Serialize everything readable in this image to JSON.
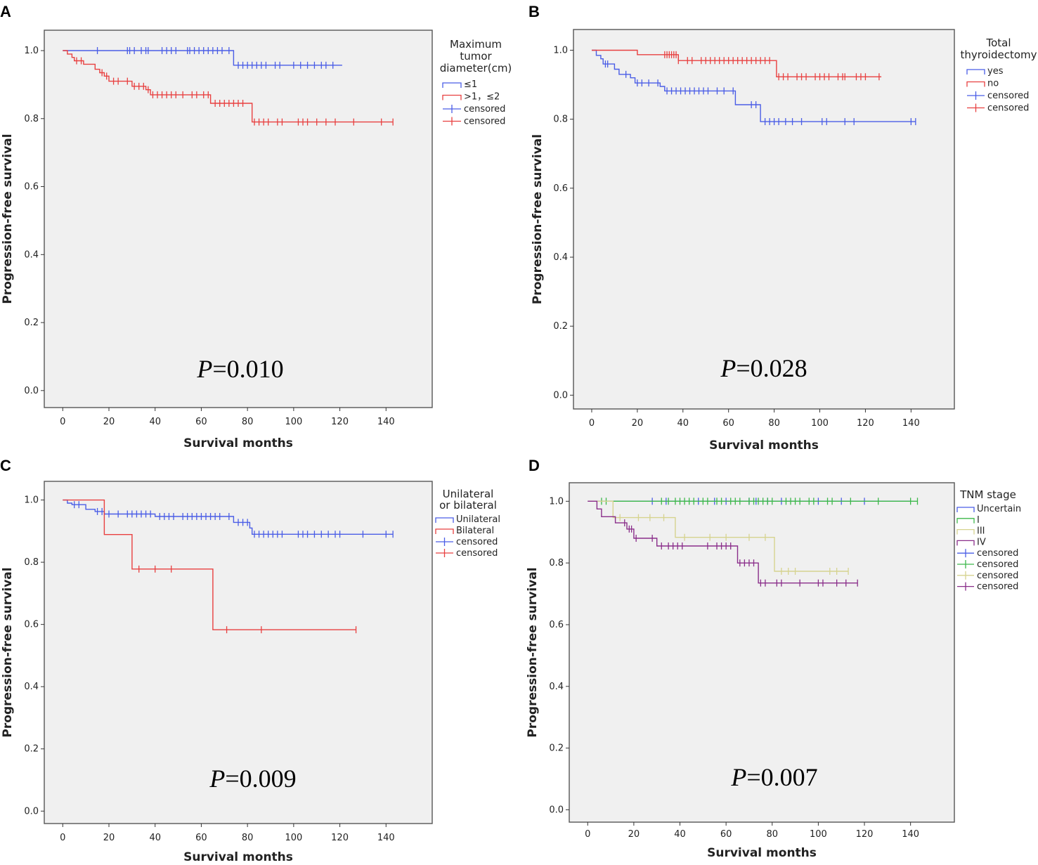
{
  "chart_data": [
    {
      "type": "line",
      "panel": "A",
      "subtype": "kaplan-meier",
      "xlabel": "Survival months",
      "ylabel": "Progression-free survival",
      "xticks": [
        "0",
        "20",
        "40",
        "60",
        "80",
        "100",
        "120",
        "140"
      ],
      "yticks": [
        "0.0",
        "0.2",
        "0.4",
        "0.6",
        "0.8",
        "1.0"
      ],
      "xlim": [
        -8,
        160
      ],
      "ylim": [
        -0.05,
        1.06
      ],
      "legend_title": [
        "Maximum",
        "tumor",
        "diameter(cm)"
      ],
      "p_prefix": "P",
      "p_value": "=0.010",
      "series": [
        {
          "name": "≤1",
          "color": "#4a5de6",
          "steps": [
            [
              0,
              1.0
            ],
            [
              74,
              0.957
            ],
            [
              121,
              0.957
            ]
          ],
          "censored": [
            15,
            28,
            29,
            31,
            34,
            36,
            37,
            43,
            45,
            47,
            49,
            54,
            55,
            57,
            59,
            61,
            63,
            65,
            67,
            69,
            72,
            76,
            78,
            80,
            82,
            84,
            86,
            88,
            92,
            94,
            100,
            103,
            106,
            109,
            112,
            114,
            117
          ]
        },
        {
          "name": ">1，≤2",
          "color": "#e84040",
          "steps": [
            [
              0,
              1.0
            ],
            [
              2,
              0.99
            ],
            [
              4,
              0.98
            ],
            [
              5,
              0.97
            ],
            [
              9,
              0.96
            ],
            [
              14,
              0.945
            ],
            [
              16,
              0.935
            ],
            [
              18,
              0.925
            ],
            [
              20,
              0.91
            ],
            [
              30,
              0.895
            ],
            [
              36,
              0.885
            ],
            [
              38,
              0.87
            ],
            [
              64,
              0.845
            ],
            [
              82,
              0.79
            ],
            [
              143,
              0.79
            ]
          ],
          "censored": [
            6,
            8,
            17,
            19,
            22,
            24,
            28,
            31,
            33,
            35,
            37,
            39,
            41,
            43,
            45,
            47,
            49,
            52,
            56,
            58,
            61,
            63,
            66,
            68,
            70,
            72,
            74,
            76,
            78,
            83,
            85,
            87,
            89,
            93,
            95,
            102,
            104,
            106,
            110,
            114,
            118,
            126,
            138,
            143
          ]
        },
        {
          "name": "censored",
          "color": "#4a5de6",
          "legend_kind": "censor"
        },
        {
          "name": "censored",
          "color": "#e84040",
          "legend_kind": "censor"
        }
      ]
    },
    {
      "type": "line",
      "panel": "B",
      "subtype": "kaplan-meier",
      "xlabel": "Survival months",
      "ylabel": "Progression-free survival",
      "xticks": [
        "0",
        "20",
        "40",
        "60",
        "80",
        "100",
        "120",
        "140"
      ],
      "yticks": [
        "0.0",
        "0.2",
        "0.4",
        "0.6",
        "0.8",
        "1.0"
      ],
      "xlim": [
        -8,
        159
      ],
      "ylim": [
        -0.04,
        1.06
      ],
      "legend_title": [
        "Total",
        "thyroidectomy"
      ],
      "p_prefix": "P",
      "p_value": "=0.028",
      "series": [
        {
          "name": "yes",
          "color": "#4a5de6",
          "steps": [
            [
              0,
              1.0
            ],
            [
              2,
              0.985
            ],
            [
              4,
              0.975
            ],
            [
              5,
              0.96
            ],
            [
              10,
              0.945
            ],
            [
              12,
              0.93
            ],
            [
              17,
              0.92
            ],
            [
              19,
              0.905
            ],
            [
              30,
              0.895
            ],
            [
              32,
              0.882
            ],
            [
              63,
              0.842
            ],
            [
              74,
              0.793
            ],
            [
              142,
              0.793
            ]
          ],
          "censored": [
            6,
            7,
            15,
            20,
            22,
            25,
            29,
            33,
            35,
            37,
            39,
            41,
            43,
            45,
            47,
            49,
            51,
            55,
            58,
            62,
            70,
            72,
            76,
            78,
            80,
            82,
            85,
            88,
            92,
            101,
            103,
            111,
            115,
            140,
            142
          ]
        },
        {
          "name": "no",
          "color": "#e84040",
          "steps": [
            [
              0,
              1.0
            ],
            [
              20,
              0.987
            ],
            [
              38,
              0.97
            ],
            [
              81,
              0.923
            ],
            [
              127,
              0.923
            ]
          ],
          "censored": [
            32,
            33,
            34,
            35,
            36,
            37,
            38,
            42,
            44,
            48,
            50,
            52,
            54,
            56,
            58,
            60,
            62,
            64,
            66,
            68,
            70,
            72,
            74,
            76,
            78,
            82,
            84,
            86,
            90,
            92,
            94,
            98,
            100,
            102,
            104,
            108,
            110,
            111,
            116,
            118,
            120,
            126
          ]
        },
        {
          "name": "censored",
          "color": "#4a5de6",
          "legend_kind": "censor"
        },
        {
          "name": "censored",
          "color": "#e84040",
          "legend_kind": "censor"
        }
      ]
    },
    {
      "type": "line",
      "panel": "C",
      "subtype": "kaplan-meier",
      "xlabel": "Survival months",
      "ylabel": "Progression-free survival",
      "xticks": [
        "0",
        "20",
        "40",
        "60",
        "80",
        "100",
        "120",
        "140"
      ],
      "yticks": [
        "0.0",
        "0.2",
        "0.4",
        "0.6",
        "0.8",
        "1.0"
      ],
      "xlim": [
        -8,
        160
      ],
      "ylim": [
        -0.04,
        1.06
      ],
      "legend_title": [
        "Unilateral",
        "or bilateral"
      ],
      "p_prefix": "P",
      "p_value": "=0.009",
      "series": [
        {
          "name": "Unilateral",
          "color": "#4a5de6",
          "steps": [
            [
              0,
              1.0
            ],
            [
              2,
              0.99
            ],
            [
              4,
              0.985
            ],
            [
              10,
              0.97
            ],
            [
              14,
              0.963
            ],
            [
              18,
              0.955
            ],
            [
              40,
              0.947
            ],
            [
              74,
              0.928
            ],
            [
              81,
              0.91
            ],
            [
              82,
              0.89
            ],
            [
              143,
              0.89
            ]
          ],
          "censored": [
            5,
            7,
            15,
            17,
            20,
            24,
            28,
            30,
            32,
            34,
            36,
            38,
            42,
            44,
            46,
            48,
            52,
            54,
            56,
            58,
            60,
            62,
            64,
            66,
            68,
            72,
            76,
            78,
            80,
            83,
            85,
            87,
            89,
            91,
            93,
            95,
            102,
            104,
            106,
            109,
            112,
            115,
            118,
            120,
            130,
            140,
            143
          ]
        },
        {
          "name": "Bilateral",
          "color": "#e84040",
          "steps": [
            [
              0,
              1.0
            ],
            [
              18,
              0.889
            ],
            [
              30,
              0.778
            ],
            [
              65,
              0.583
            ],
            [
              127,
              0.583
            ]
          ],
          "censored": [
            33,
            40,
            47,
            71,
            86,
            127
          ]
        },
        {
          "name": "censored",
          "color": "#4a5de6",
          "legend_kind": "censor"
        },
        {
          "name": "censored",
          "color": "#e84040",
          "legend_kind": "censor"
        }
      ]
    },
    {
      "type": "line",
      "panel": "D",
      "subtype": "kaplan-meier",
      "xlabel": "Survival months",
      "ylabel": "Progression-free survival",
      "xticks": [
        "0",
        "20",
        "40",
        "60",
        "80",
        "100",
        "120",
        "140"
      ],
      "yticks": [
        "0.0",
        "0.2",
        "0.4",
        "0.6",
        "0.8",
        "1.0"
      ],
      "xlim": [
        -8,
        159
      ],
      "ylim": [
        -0.04,
        1.06
      ],
      "legend_title": [
        "TNM stage"
      ],
      "p_prefix": "P",
      "p_value": "=0.007",
      "series": [
        {
          "name": "Uncertain",
          "color": "#4a5de6",
          "steps": [
            [
              0,
              1.0
            ],
            [
              140,
              1.0
            ]
          ],
          "censored": [
            28,
            34,
            48,
            55,
            60,
            70,
            73,
            78,
            84,
            100,
            110,
            120
          ]
        },
        {
          "name": "I",
          "color": "#3cb84a",
          "steps": [
            [
              6,
              1.0
            ],
            [
              143,
              1.0
            ]
          ],
          "censored": [
            6,
            8,
            32,
            35,
            38,
            40,
            42,
            44,
            46,
            50,
            52,
            56,
            58,
            62,
            64,
            66,
            70,
            72,
            74,
            76,
            78,
            80,
            86,
            88,
            90,
            92,
            96,
            98,
            104,
            106,
            114,
            126,
            140,
            143
          ]
        },
        {
          "name": "III",
          "color": "#d6d38f",
          "steps": [
            [
              0,
              1.0
            ],
            [
              11,
              0.947
            ],
            [
              38,
              0.883
            ],
            [
              81,
              0.773
            ],
            [
              113,
              0.773
            ]
          ],
          "censored": [
            14,
            22,
            27,
            33,
            42,
            53,
            60,
            70,
            77,
            84,
            87,
            90,
            105,
            108,
            113
          ]
        },
        {
          "name": "IV",
          "color": "#8a2e8a",
          "steps": [
            [
              0,
              1.0
            ],
            [
              4,
              0.975
            ],
            [
              6,
              0.95
            ],
            [
              12,
              0.93
            ],
            [
              17,
              0.91
            ],
            [
              20,
              0.88
            ],
            [
              30,
              0.855
            ],
            [
              65,
              0.8
            ],
            [
              74,
              0.735
            ],
            [
              117,
              0.735
            ]
          ],
          "censored": [
            16,
            18,
            19,
            21,
            28,
            32,
            35,
            37,
            39,
            41,
            52,
            56,
            58,
            60,
            62,
            66,
            68,
            70,
            72,
            75,
            77,
            82,
            84,
            92,
            100,
            102,
            108,
            112,
            117
          ]
        },
        {
          "name": "censored",
          "color": "#4a5de6",
          "legend_kind": "censor"
        },
        {
          "name": "censored",
          "color": "#3cb84a",
          "legend_kind": "censor"
        },
        {
          "name": "censored",
          "color": "#d6d38f",
          "legend_kind": "censor"
        },
        {
          "name": "censored",
          "color": "#8a2e8a",
          "legend_kind": "censor"
        }
      ]
    }
  ]
}
